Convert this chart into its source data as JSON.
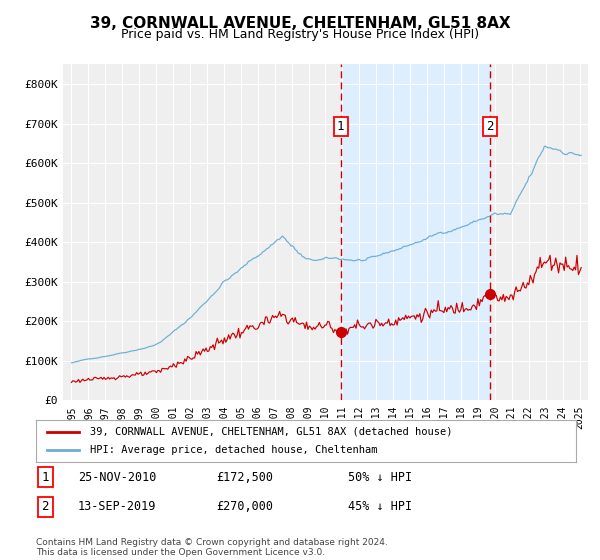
{
  "title": "39, CORNWALL AVENUE, CHELTENHAM, GL51 8AX",
  "subtitle": "Price paid vs. HM Land Registry's House Price Index (HPI)",
  "title_fontsize": 11,
  "subtitle_fontsize": 9,
  "ylim": [
    0,
    850000
  ],
  "yticks": [
    0,
    100000,
    200000,
    300000,
    400000,
    500000,
    600000,
    700000,
    800000
  ],
  "ytick_labels": [
    "£0",
    "£100K",
    "£200K",
    "£300K",
    "£400K",
    "£500K",
    "£600K",
    "£700K",
    "£800K"
  ],
  "hpi_color": "#6baed6",
  "price_color": "#cc0000",
  "dashed_line_color": "#cc0000",
  "background_color": "#ffffff",
  "plot_bg_color": "#efefef",
  "shade_color": "#ddeeff",
  "legend_label_price": "39, CORNWALL AVENUE, CHELTENHAM, GL51 8AX (detached house)",
  "legend_label_hpi": "HPI: Average price, detached house, Cheltenham",
  "annotation1_label": "1",
  "annotation1_date": "25-NOV-2010",
  "annotation1_price": "£172,500",
  "annotation1_note": "50% ↓ HPI",
  "annotation1_year": 2010.9,
  "annotation1_value": 172500,
  "annotation2_label": "2",
  "annotation2_date": "13-SEP-2019",
  "annotation2_price": "£270,000",
  "annotation2_note": "45% ↓ HPI",
  "annotation2_year": 2019.7,
  "annotation2_value": 270000,
  "footer": "Contains HM Land Registry data © Crown copyright and database right 2024.\nThis data is licensed under the Open Government Licence v3.0.",
  "start_year": 1995,
  "end_year": 2025
}
